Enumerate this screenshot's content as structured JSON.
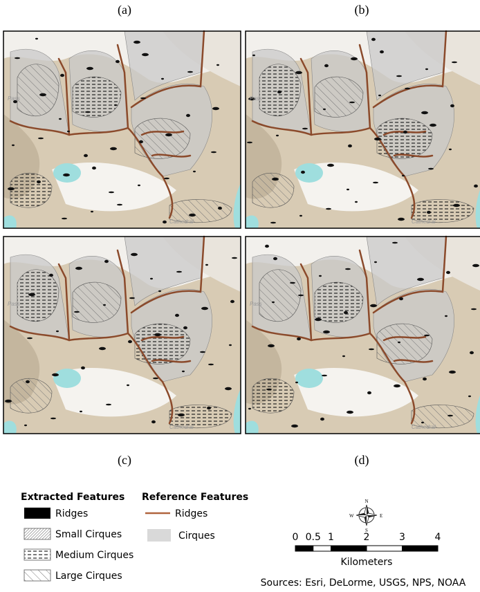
{
  "panels": [
    {
      "label": "(a)"
    },
    {
      "label": "(b)"
    },
    {
      "label": "(c)"
    },
    {
      "label": "(d)"
    }
  ],
  "map_text": {
    "place": "Cathedral",
    "pass": "Pass"
  },
  "legend": {
    "extracted": {
      "title": "Extracted Features",
      "items": [
        "Ridges",
        "Small Cirques",
        "Medium Cirques",
        "Large Cirques"
      ]
    },
    "reference": {
      "title": "Reference Features",
      "items": [
        "Ridges",
        "Cirques"
      ]
    }
  },
  "compass": {
    "n": "N",
    "s": "S",
    "e": "E",
    "w": "W"
  },
  "scale_bar": {
    "ticks": [
      0,
      0.5,
      1,
      2,
      3,
      4
    ],
    "unit": "Kilometers"
  },
  "sources": "Sources: Esri, DeLorme, USGS, NPS, NOAA"
}
